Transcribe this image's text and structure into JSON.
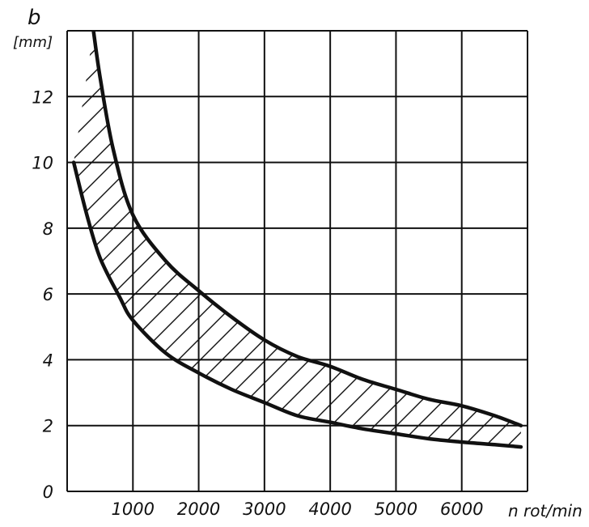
{
  "chart_data": {
    "type": "area",
    "title": "",
    "ylabel": "b",
    "yunit": "[mm]",
    "xlabel": "n rot/min",
    "xlim": [
      0,
      7000
    ],
    "ylim": [
      0,
      14
    ],
    "grid": true,
    "x_ticks": [
      {
        "value": 1000,
        "label": "1000"
      },
      {
        "value": 2000,
        "label": "2000"
      },
      {
        "value": 3000,
        "label": "3000"
      },
      {
        "value": 4000,
        "label": "4000"
      },
      {
        "value": 5000,
        "label": "5000"
      },
      {
        "value": 6000,
        "label": "6000"
      }
    ],
    "y_ticks": [
      {
        "value": 0,
        "label": "0"
      },
      {
        "value": 2,
        "label": "2"
      },
      {
        "value": 4,
        "label": "4"
      },
      {
        "value": 6,
        "label": "6"
      },
      {
        "value": 8,
        "label": "8"
      },
      {
        "value": 10,
        "label": "10"
      },
      {
        "value": 12,
        "label": "12"
      }
    ],
    "series": [
      {
        "x": [
          400,
          500,
          700,
          1000,
          1500,
          2000,
          2500,
          3000,
          3500,
          4000,
          4500,
          5000,
          5500,
          6000,
          6500,
          6900
        ],
        "values": [
          14,
          12.6,
          10.4,
          8.4,
          7.0,
          6.1,
          5.3,
          4.6,
          4.1,
          3.8,
          3.4,
          3.1,
          2.8,
          2.6,
          2.3,
          2.0
        ]
      },
      {
        "x": [
          100,
          300,
          500,
          800,
          1000,
          1500,
          2000,
          2500,
          3000,
          3500,
          4000,
          4500,
          5000,
          5500,
          6000,
          6500,
          6900
        ],
        "values": [
          10,
          8.4,
          7.1,
          5.9,
          5.2,
          4.2,
          3.6,
          3.1,
          2.7,
          2.3,
          2.1,
          1.9,
          1.75,
          1.6,
          1.5,
          1.42,
          1.35
        ]
      }
    ],
    "band": "hatched region between the two curves",
    "colors": {
      "line": "#111111",
      "grid": "#111111",
      "hatch": "#111111"
    }
  }
}
